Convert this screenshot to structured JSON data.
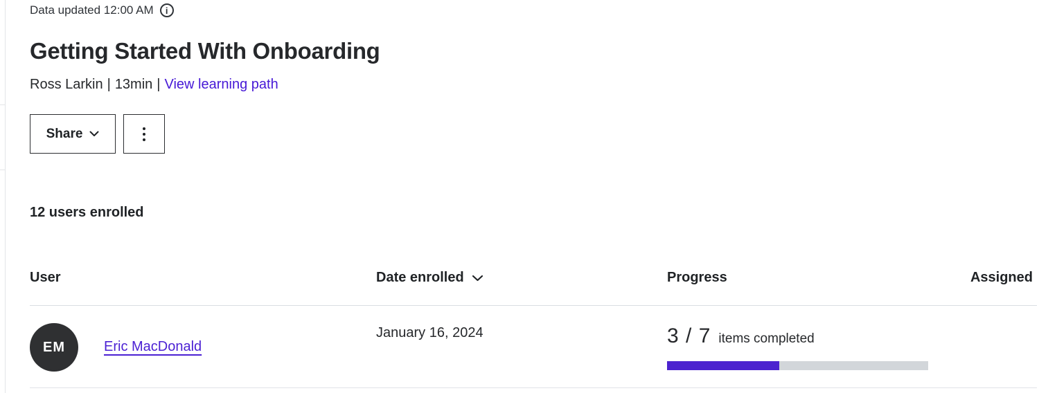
{
  "meta": {
    "data_updated": "Data updated 12:00 AM"
  },
  "header": {
    "title": "Getting Started With Onboarding",
    "author": "Ross Larkin",
    "separator": "|",
    "duration": "13min",
    "learning_path_link": "View learning path"
  },
  "toolbar": {
    "share_label": "Share"
  },
  "enrollment": {
    "count_label": "12 users enrolled"
  },
  "table": {
    "headers": {
      "user": "User",
      "date_enrolled": "Date enrolled",
      "progress": "Progress",
      "assigned": "Assigned"
    },
    "rows": [
      {
        "initials": "EM",
        "name": "Eric MacDonald",
        "date_enrolled": "January 16, 2024",
        "progress_completed": 3,
        "progress_total": 7,
        "progress_fraction": "3 / 7",
        "progress_caption": "items completed",
        "progress_percent": 42.86
      }
    ]
  },
  "icons": {
    "info": "info-icon",
    "share_chevron": "chevron-down-icon",
    "kebab": "kebab-menu-icon",
    "sort_chevron": "chevron-down-icon"
  },
  "colors": {
    "text_dark": "#26282b",
    "link_purple": "#4618d6",
    "name_link_purple": "#4a1fd3",
    "progress_fill_purple": "#4c23cf",
    "progress_track_gray": "#d2d6da",
    "avatar_bg": "#2f3032",
    "divider_gray": "#d9dde2"
  }
}
